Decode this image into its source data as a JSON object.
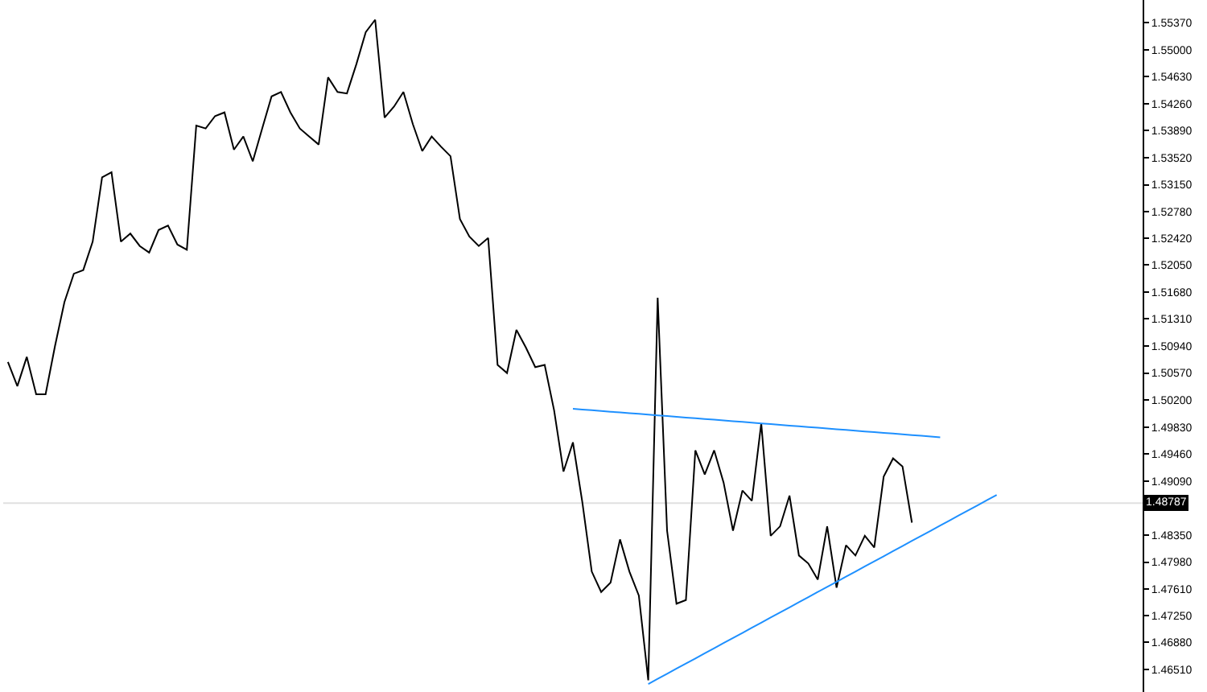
{
  "chart_data": {
    "type": "line",
    "categories": [
      null,
      null,
      null,
      null,
      null,
      null,
      null,
      null,
      null,
      null,
      null,
      null,
      null,
      null,
      null,
      null,
      null,
      null,
      null,
      null,
      null,
      null,
      null,
      null,
      null,
      null,
      null,
      null,
      null,
      null,
      null,
      null,
      null,
      null,
      null,
      null,
      null,
      null,
      null,
      null,
      null,
      null,
      null,
      null,
      null,
      null,
      null,
      null,
      null,
      null,
      null,
      null,
      null,
      null,
      null,
      null,
      null,
      null,
      null,
      null,
      null,
      null,
      null,
      null,
      null,
      null,
      null,
      null,
      null,
      null,
      null,
      null,
      null,
      null,
      null,
      null,
      null,
      null,
      null,
      null,
      null,
      null,
      null,
      null,
      null,
      null,
      null,
      null,
      null,
      null,
      null,
      null,
      null,
      null,
      null,
      null,
      null,
      null,
      null,
      null,
      null,
      null,
      null,
      null,
      null,
      null,
      null,
      null,
      null,
      null,
      null,
      null,
      null,
      null,
      null,
      null,
      null,
      null,
      null,
      null,
      null
    ],
    "series": [
      {
        "color": "#000000",
        "values": [
          1.5072,
          1.5039,
          1.5079,
          1.5028,
          1.5028,
          1.5094,
          1.5154,
          1.5193,
          1.5198,
          1.5237,
          1.5325,
          1.5332,
          1.5237,
          1.5248,
          1.5231,
          1.5222,
          1.5253,
          1.5259,
          1.5233,
          1.5226,
          1.5396,
          1.5392,
          1.5409,
          1.5414,
          1.5363,
          1.5381,
          1.5347,
          1.5392,
          1.5436,
          1.5442,
          1.5414,
          1.5392,
          1.5381,
          1.537,
          1.5462,
          1.5442,
          1.544,
          1.548,
          1.5524,
          1.5541,
          1.5407,
          1.5422,
          1.5442,
          1.5398,
          1.5361,
          1.5381,
          1.5367,
          1.5354,
          1.5268,
          1.5244,
          1.5231,
          1.5242,
          1.5068,
          1.5057,
          1.5116,
          1.5092,
          1.5065,
          1.5068,
          1.5006,
          1.4922,
          1.4962,
          1.488,
          1.4785,
          1.4757,
          1.477,
          1.4829,
          1.4785,
          1.4752,
          1.4636,
          1.516,
          1.4841,
          1.4741,
          1.4746,
          1.4951,
          1.4918,
          1.4951,
          1.4907,
          1.4841,
          1.4896,
          1.4882,
          1.4988,
          1.4834,
          1.4847,
          1.4889,
          1.4807,
          1.4796,
          1.4774,
          1.4847,
          1.4763,
          1.4821,
          1.4807,
          1.4834,
          1.4818,
          1.4915,
          1.494,
          1.4929,
          1.4852,
          null,
          null,
          null,
          null,
          null,
          null,
          null,
          null,
          null,
          null,
          null,
          null,
          null,
          null,
          null,
          null,
          null,
          null,
          null,
          null,
          null,
          null,
          null,
          null
        ]
      },
      {
        "type": "line",
        "color": "#1e90ff",
        "values": [
          null,
          null,
          null,
          null,
          null,
          null,
          null,
          null,
          null,
          null,
          null,
          null,
          null,
          null,
          null,
          null,
          null,
          null,
          null,
          null,
          null,
          null,
          null,
          null,
          null,
          null,
          null,
          null,
          null,
          null,
          null,
          null,
          null,
          null,
          null,
          null,
          null,
          null,
          null,
          null,
          null,
          null,
          null,
          null,
          null,
          null,
          null,
          null,
          null,
          null,
          null,
          null,
          null,
          null,
          null,
          null,
          null,
          null,
          null,
          null,
          1.5008,
          1.5007,
          1.5006,
          1.5005,
          1.5004,
          1.5003,
          1.5002,
          1.5001,
          1.5,
          1.4999,
          1.4998,
          1.4997,
          1.4996,
          1.4995,
          1.4994,
          1.4993,
          1.4992,
          1.4991,
          1.499,
          1.4989,
          1.4988,
          1.4987,
          1.4986,
          1.4985,
          1.4984,
          1.4983,
          1.4982,
          1.4981,
          1.498,
          1.4979,
          1.4978,
          1.4977,
          1.4976,
          1.4975,
          1.4974,
          1.4973,
          1.4972,
          1.4971,
          1.497,
          1.4969,
          null,
          null,
          null,
          null,
          null,
          null,
          null,
          null,
          null,
          null,
          null,
          null,
          null,
          null,
          null,
          null,
          null,
          null,
          null,
          null,
          null
        ]
      },
      {
        "type": "line",
        "color": "#1e90ff",
        "values": [
          null,
          null,
          null,
          null,
          null,
          null,
          null,
          null,
          null,
          null,
          null,
          null,
          null,
          null,
          null,
          null,
          null,
          null,
          null,
          null,
          null,
          null,
          null,
          null,
          null,
          null,
          null,
          null,
          null,
          null,
          null,
          null,
          null,
          null,
          null,
          null,
          null,
          null,
          null,
          null,
          null,
          null,
          null,
          null,
          null,
          null,
          null,
          null,
          null,
          null,
          null,
          null,
          null,
          null,
          null,
          null,
          null,
          null,
          null,
          null,
          null,
          null,
          null,
          null,
          null,
          null,
          null,
          null,
          1.4631,
          1.4638,
          1.4645,
          1.4652,
          1.4659,
          1.4666,
          1.4673,
          1.468,
          1.4687,
          1.4694,
          1.4701,
          1.4708,
          1.4715,
          1.4722,
          1.4729,
          1.4736,
          1.4743,
          1.475,
          1.4757,
          1.4764,
          1.4771,
          1.4778,
          1.4785,
          1.4792,
          1.4799,
          1.4806,
          1.4813,
          1.482,
          1.4827,
          1.4834,
          1.4841,
          1.4848,
          1.4855,
          1.4862,
          1.4869,
          1.4876,
          1.4883,
          1.489,
          null,
          null,
          null,
          null,
          null,
          null,
          null,
          null,
          null,
          null,
          null,
          null,
          null,
          null,
          null
        ]
      }
    ],
    "ylim": [
      1.462,
      1.5568
    ],
    "yticks": [
      {
        "value": 1.5537,
        "label": "1.55370"
      },
      {
        "value": 1.55,
        "label": "1.55000"
      },
      {
        "value": 1.5463,
        "label": "1.54630"
      },
      {
        "value": 1.5426,
        "label": "1.54260"
      },
      {
        "value": 1.5389,
        "label": "1.53890"
      },
      {
        "value": 1.5352,
        "label": "1.53520"
      },
      {
        "value": 1.5315,
        "label": "1.53150"
      },
      {
        "value": 1.5278,
        "label": "1.52780"
      },
      {
        "value": 1.5242,
        "label": "1.52420"
      },
      {
        "value": 1.5205,
        "label": "1.52050"
      },
      {
        "value": 1.5168,
        "label": "1.51680"
      },
      {
        "value": 1.5131,
        "label": "1.51310"
      },
      {
        "value": 1.5094,
        "label": "1.50940"
      },
      {
        "value": 1.5057,
        "label": "1.50570"
      },
      {
        "value": 1.502,
        "label": "1.50200"
      },
      {
        "value": 1.4983,
        "label": "1.49830"
      },
      {
        "value": 1.4946,
        "label": "1.49460"
      },
      {
        "value": 1.4909,
        "label": "1.49090"
      },
      {
        "value": 1.4835,
        "label": "1.48350"
      },
      {
        "value": 1.4798,
        "label": "1.47980"
      },
      {
        "value": 1.4761,
        "label": "1.47610"
      },
      {
        "value": 1.4725,
        "label": "1.47250"
      },
      {
        "value": 1.4688,
        "label": "1.46880"
      },
      {
        "value": 1.4651,
        "label": "1.46510"
      }
    ],
    "ref_lines": [
      {
        "axis": "y",
        "value": 1.48787,
        "label": "1.48787",
        "color": "#e0e0e0"
      }
    ],
    "tick_labels": "y",
    "grid": false,
    "marker": "none",
    "line_style": "solid"
  }
}
